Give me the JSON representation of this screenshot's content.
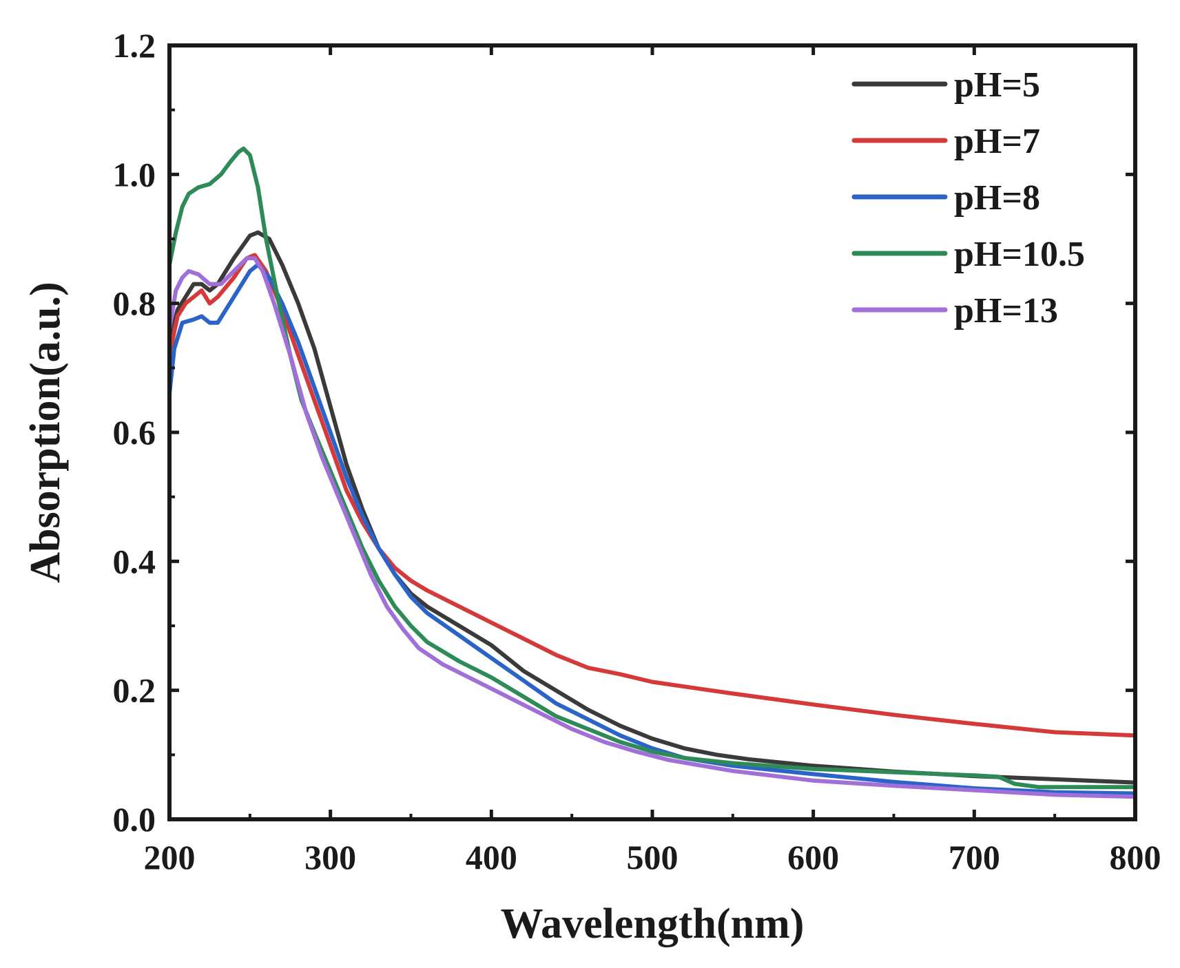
{
  "chart_data": {
    "type": "line",
    "title": "",
    "xlabel": "Wavelength(nm)",
    "ylabel": "Absorption(a.u.)",
    "xlim": [
      200,
      800
    ],
    "ylim": [
      0.0,
      1.2
    ],
    "x_ticks": [
      200,
      300,
      400,
      500,
      600,
      700,
      800
    ],
    "y_ticks": [
      0.0,
      0.2,
      0.4,
      0.6,
      0.8,
      1.0,
      1.2
    ],
    "x_tick_labels": [
      "200",
      "300",
      "400",
      "500",
      "600",
      "700",
      "800"
    ],
    "y_tick_labels": [
      "0.0",
      "0.2",
      "0.4",
      "0.6",
      "0.8",
      "1.0",
      "1.2"
    ],
    "grid": false,
    "legend_position": "top-right",
    "series": [
      {
        "name": "pH=5",
        "color": "#3a3a3a",
        "points": [
          [
            200,
            0.74
          ],
          [
            205,
            0.79
          ],
          [
            210,
            0.81
          ],
          [
            215,
            0.83
          ],
          [
            220,
            0.83
          ],
          [
            225,
            0.82
          ],
          [
            230,
            0.83
          ],
          [
            240,
            0.87
          ],
          [
            250,
            0.905
          ],
          [
            255,
            0.91
          ],
          [
            262,
            0.9
          ],
          [
            270,
            0.86
          ],
          [
            280,
            0.8
          ],
          [
            290,
            0.73
          ],
          [
            300,
            0.64
          ],
          [
            310,
            0.55
          ],
          [
            320,
            0.48
          ],
          [
            330,
            0.42
          ],
          [
            340,
            0.38
          ],
          [
            350,
            0.35
          ],
          [
            360,
            0.33
          ],
          [
            380,
            0.3
          ],
          [
            400,
            0.27
          ],
          [
            420,
            0.23
          ],
          [
            440,
            0.2
          ],
          [
            460,
            0.17
          ],
          [
            480,
            0.145
          ],
          [
            500,
            0.125
          ],
          [
            520,
            0.11
          ],
          [
            540,
            0.1
          ],
          [
            560,
            0.093
          ],
          [
            600,
            0.083
          ],
          [
            650,
            0.074
          ],
          [
            700,
            0.067
          ],
          [
            750,
            0.062
          ],
          [
            800,
            0.057
          ]
        ]
      },
      {
        "name": "pH=7",
        "color": "#d43a3a",
        "points": [
          [
            200,
            0.72
          ],
          [
            205,
            0.78
          ],
          [
            210,
            0.8
          ],
          [
            215,
            0.81
          ],
          [
            220,
            0.82
          ],
          [
            225,
            0.8
          ],
          [
            230,
            0.81
          ],
          [
            240,
            0.84
          ],
          [
            248,
            0.87
          ],
          [
            253,
            0.875
          ],
          [
            260,
            0.85
          ],
          [
            270,
            0.79
          ],
          [
            280,
            0.72
          ],
          [
            290,
            0.65
          ],
          [
            300,
            0.58
          ],
          [
            310,
            0.51
          ],
          [
            320,
            0.46
          ],
          [
            330,
            0.42
          ],
          [
            340,
            0.39
          ],
          [
            350,
            0.37
          ],
          [
            360,
            0.355
          ],
          [
            380,
            0.33
          ],
          [
            400,
            0.305
          ],
          [
            420,
            0.28
          ],
          [
            440,
            0.255
          ],
          [
            460,
            0.235
          ],
          [
            480,
            0.225
          ],
          [
            500,
            0.213
          ],
          [
            550,
            0.195
          ],
          [
            600,
            0.178
          ],
          [
            650,
            0.162
          ],
          [
            700,
            0.148
          ],
          [
            750,
            0.135
          ],
          [
            800,
            0.13
          ]
        ]
      },
      {
        "name": "pH=8",
        "color": "#2a64c8",
        "points": [
          [
            200,
            0.66
          ],
          [
            203,
            0.73
          ],
          [
            208,
            0.77
          ],
          [
            215,
            0.775
          ],
          [
            220,
            0.78
          ],
          [
            225,
            0.77
          ],
          [
            230,
            0.77
          ],
          [
            240,
            0.81
          ],
          [
            250,
            0.85
          ],
          [
            255,
            0.86
          ],
          [
            262,
            0.84
          ],
          [
            270,
            0.8
          ],
          [
            280,
            0.74
          ],
          [
            290,
            0.67
          ],
          [
            300,
            0.6
          ],
          [
            310,
            0.53
          ],
          [
            320,
            0.47
          ],
          [
            330,
            0.42
          ],
          [
            340,
            0.38
          ],
          [
            350,
            0.345
          ],
          [
            360,
            0.32
          ],
          [
            380,
            0.285
          ],
          [
            400,
            0.25
          ],
          [
            420,
            0.215
          ],
          [
            440,
            0.18
          ],
          [
            460,
            0.155
          ],
          [
            480,
            0.13
          ],
          [
            500,
            0.11
          ],
          [
            520,
            0.095
          ],
          [
            550,
            0.083
          ],
          [
            600,
            0.07
          ],
          [
            650,
            0.058
          ],
          [
            700,
            0.048
          ],
          [
            750,
            0.042
          ],
          [
            800,
            0.04
          ]
        ]
      },
      {
        "name": "pH=10.5",
        "color": "#2e8b57",
        "points": [
          [
            200,
            0.86
          ],
          [
            204,
            0.91
          ],
          [
            208,
            0.95
          ],
          [
            212,
            0.97
          ],
          [
            218,
            0.98
          ],
          [
            225,
            0.985
          ],
          [
            232,
            1.0
          ],
          [
            238,
            1.02
          ],
          [
            243,
            1.035
          ],
          [
            246,
            1.04
          ],
          [
            250,
            1.03
          ],
          [
            255,
            0.98
          ],
          [
            260,
            0.9
          ],
          [
            268,
            0.8
          ],
          [
            275,
            0.72
          ],
          [
            282,
            0.65
          ],
          [
            290,
            0.6
          ],
          [
            300,
            0.54
          ],
          [
            310,
            0.48
          ],
          [
            320,
            0.42
          ],
          [
            330,
            0.37
          ],
          [
            340,
            0.33
          ],
          [
            350,
            0.3
          ],
          [
            360,
            0.275
          ],
          [
            380,
            0.245
          ],
          [
            400,
            0.22
          ],
          [
            420,
            0.19
          ],
          [
            440,
            0.16
          ],
          [
            460,
            0.14
          ],
          [
            480,
            0.12
          ],
          [
            500,
            0.105
          ],
          [
            520,
            0.095
          ],
          [
            550,
            0.087
          ],
          [
            600,
            0.078
          ],
          [
            650,
            0.073
          ],
          [
            700,
            0.068
          ],
          [
            715,
            0.066
          ],
          [
            725,
            0.055
          ],
          [
            740,
            0.05
          ],
          [
            800,
            0.05
          ]
        ]
      },
      {
        "name": "pH=13",
        "color": "#a070d8",
        "points": [
          [
            200,
            0.76
          ],
          [
            204,
            0.82
          ],
          [
            208,
            0.84
          ],
          [
            212,
            0.85
          ],
          [
            218,
            0.845
          ],
          [
            225,
            0.83
          ],
          [
            232,
            0.83
          ],
          [
            240,
            0.85
          ],
          [
            248,
            0.87
          ],
          [
            253,
            0.87
          ],
          [
            258,
            0.85
          ],
          [
            265,
            0.8
          ],
          [
            275,
            0.72
          ],
          [
            285,
            0.63
          ],
          [
            295,
            0.56
          ],
          [
            305,
            0.5
          ],
          [
            315,
            0.44
          ],
          [
            325,
            0.38
          ],
          [
            335,
            0.33
          ],
          [
            345,
            0.295
          ],
          [
            355,
            0.265
          ],
          [
            370,
            0.24
          ],
          [
            390,
            0.215
          ],
          [
            410,
            0.19
          ],
          [
            430,
            0.165
          ],
          [
            450,
            0.14
          ],
          [
            470,
            0.12
          ],
          [
            490,
            0.105
          ],
          [
            510,
            0.092
          ],
          [
            550,
            0.075
          ],
          [
            600,
            0.06
          ],
          [
            650,
            0.052
          ],
          [
            700,
            0.045
          ],
          [
            750,
            0.038
          ],
          [
            800,
            0.035
          ]
        ]
      }
    ]
  }
}
